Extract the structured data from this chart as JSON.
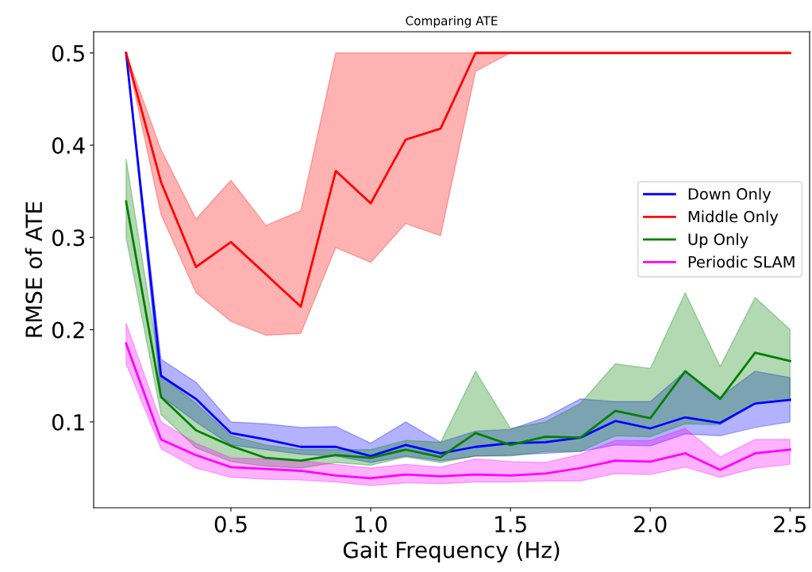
{
  "chart_data": {
    "type": "line",
    "title": "Comparing ATE",
    "xlabel": "Gait Frequency (Hz)",
    "ylabel": "RMSE of ATE",
    "x": [
      0.125,
      0.25,
      0.375,
      0.5,
      0.625,
      0.75,
      0.875,
      1.0,
      1.125,
      1.25,
      1.375,
      1.5,
      1.625,
      1.75,
      1.875,
      2.0,
      2.125,
      2.25,
      2.375,
      2.5
    ],
    "series": [
      {
        "name": "Down Only",
        "color": "#0000ff",
        "values": [
          0.5,
          0.15,
          0.125,
          0.088,
          0.081,
          0.073,
          0.073,
          0.063,
          0.075,
          0.066,
          0.073,
          0.077,
          0.078,
          0.083,
          0.101,
          0.093,
          0.105,
          0.099,
          0.12,
          0.124
        ],
        "lower": [
          0.5,
          0.128,
          0.1,
          0.075,
          0.07,
          0.065,
          0.063,
          0.056,
          0.063,
          0.058,
          0.063,
          0.064,
          0.066,
          0.068,
          0.075,
          0.074,
          0.087,
          0.085,
          0.094,
          0.1
        ],
        "upper": [
          0.5,
          0.168,
          0.143,
          0.1,
          0.098,
          0.094,
          0.095,
          0.077,
          0.1,
          0.078,
          0.09,
          0.092,
          0.105,
          0.125,
          0.122,
          0.122,
          0.155,
          0.127,
          0.155,
          0.148
        ]
      },
      {
        "name": "Middle Only",
        "color": "#ff0000",
        "values": [
          0.5,
          0.36,
          0.268,
          0.295,
          0.26,
          0.225,
          0.372,
          0.337,
          0.406,
          0.418,
          0.5,
          0.5,
          0.5,
          0.5,
          0.5,
          0.5,
          0.5,
          0.5,
          0.5,
          0.5
        ],
        "lower": [
          0.5,
          0.325,
          0.24,
          0.209,
          0.194,
          0.196,
          0.289,
          0.273,
          0.315,
          0.302,
          0.48,
          0.5,
          0.5,
          0.5,
          0.5,
          0.5,
          0.5,
          0.5,
          0.5,
          0.5
        ],
        "upper": [
          0.5,
          0.395,
          0.32,
          0.362,
          0.313,
          0.329,
          0.5,
          0.5,
          0.5,
          0.5,
          0.5,
          0.5,
          0.5,
          0.5,
          0.5,
          0.5,
          0.5,
          0.5,
          0.5,
          0.5
        ]
      },
      {
        "name": "Up Only",
        "color": "#008000",
        "values": [
          0.339,
          0.127,
          0.091,
          0.074,
          0.061,
          0.058,
          0.064,
          0.061,
          0.07,
          0.062,
          0.088,
          0.075,
          0.084,
          0.083,
          0.112,
          0.104,
          0.155,
          0.125,
          0.175,
          0.166
        ],
        "lower": [
          0.3,
          0.108,
          0.072,
          0.057,
          0.052,
          0.05,
          0.056,
          0.053,
          0.062,
          0.056,
          0.063,
          0.063,
          0.068,
          0.068,
          0.085,
          0.084,
          0.098,
          0.097,
          0.12,
          0.124
        ],
        "upper": [
          0.385,
          0.15,
          0.12,
          0.085,
          0.075,
          0.07,
          0.07,
          0.07,
          0.08,
          0.078,
          0.155,
          0.093,
          0.1,
          0.12,
          0.163,
          0.158,
          0.24,
          0.16,
          0.235,
          0.2
        ]
      },
      {
        "name": "Periodic SLAM",
        "color": "#ff00ff",
        "values": [
          0.185,
          0.081,
          0.064,
          0.051,
          0.049,
          0.047,
          0.042,
          0.039,
          0.043,
          0.041,
          0.043,
          0.042,
          0.044,
          0.05,
          0.058,
          0.057,
          0.066,
          0.048,
          0.066,
          0.07
        ],
        "lower": [
          0.163,
          0.071,
          0.05,
          0.04,
          0.038,
          0.037,
          0.035,
          0.031,
          0.034,
          0.033,
          0.035,
          0.035,
          0.036,
          0.036,
          0.044,
          0.043,
          0.051,
          0.04,
          0.05,
          0.054
        ],
        "upper": [
          0.207,
          0.1,
          0.077,
          0.061,
          0.06,
          0.058,
          0.054,
          0.05,
          0.054,
          0.051,
          0.06,
          0.057,
          0.056,
          0.065,
          0.08,
          0.08,
          0.093,
          0.062,
          0.081,
          0.081
        ]
      }
    ],
    "xlim": [
      0.009,
      2.57
    ],
    "ylim": [
      0.007,
      0.523
    ],
    "xticks": [
      0.5,
      {
        "value": 1,
        "label": "1.0"
      },
      1.5,
      {
        "value": 2,
        "label": "2.0"
      },
      2.5
    ],
    "yticks": [
      0.1,
      0.2,
      0.3,
      0.4,
      0.5
    ],
    "legend": "right",
    "grid": false
  }
}
